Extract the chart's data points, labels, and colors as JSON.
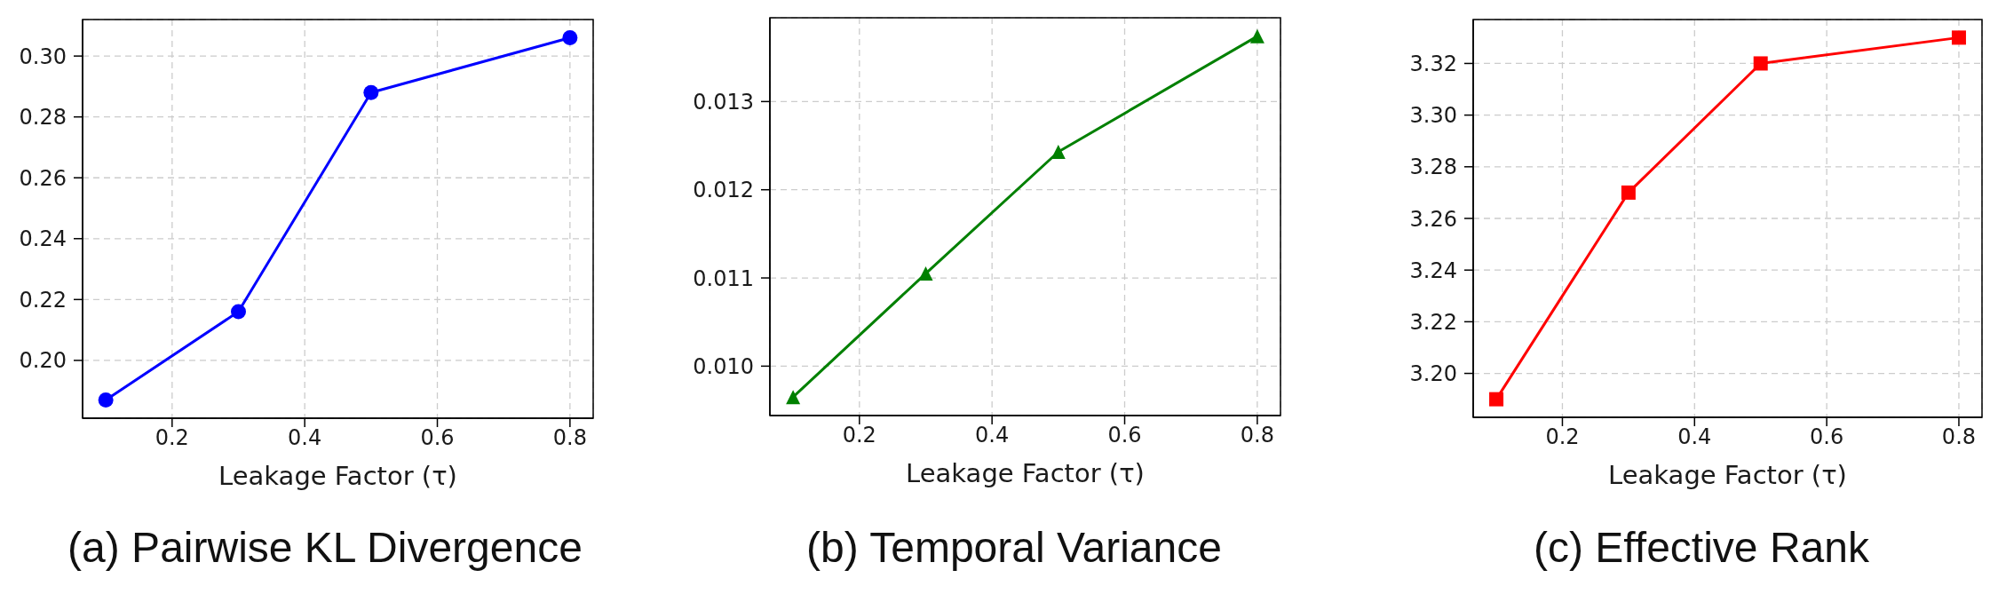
{
  "chart_data": [
    {
      "type": "line",
      "title": "(a) Pairwise KL Divergence",
      "xlabel": "Leakage Factor (τ)",
      "x": [
        0.1,
        0.3,
        0.5,
        0.8
      ],
      "series": [
        {
          "color": "#0000ff",
          "values": [
            0.187,
            0.216,
            0.288,
            0.306
          ]
        }
      ],
      "marker": "circle",
      "grid": true,
      "xlim": [
        0.065,
        0.835
      ],
      "xticks": [
        0.2,
        0.4,
        0.6,
        0.8
      ],
      "ylim": [
        0.181,
        0.312
      ],
      "yticks": [
        {
          "value": 0.2,
          "label": "0.20"
        },
        0.22,
        0.24,
        0.26,
        0.28,
        {
          "value": 0.3,
          "label": "0.30"
        }
      ]
    },
    {
      "type": "line",
      "title": "(b) Temporal Variance",
      "xlabel": "Leakage Factor (τ)",
      "x": [
        0.1,
        0.3,
        0.5,
        0.8
      ],
      "series": [
        {
          "color": "#008000",
          "values": [
            0.00965,
            0.01105,
            0.01243,
            0.01374
          ]
        }
      ],
      "marker": "triangle",
      "grid": true,
      "xlim": [
        0.065,
        0.835
      ],
      "xticks": [
        0.2,
        0.4,
        0.6,
        0.8
      ],
      "ylim": [
        0.00944,
        0.01395
      ],
      "yticks": [
        {
          "value": 0.01,
          "label": "0.010"
        },
        0.011,
        0.012,
        0.013
      ]
    },
    {
      "type": "line",
      "title": "(c) Effective Rank",
      "xlabel": "Leakage Factor (τ)",
      "x": [
        0.1,
        0.3,
        0.5,
        0.8
      ],
      "series": [
        {
          "color": "#ff0000",
          "values": [
            3.19,
            3.27,
            3.32,
            3.33
          ]
        }
      ],
      "marker": "square",
      "grid": true,
      "xlim": [
        0.065,
        0.835
      ],
      "xticks": [
        0.2,
        0.4,
        0.6,
        0.8
      ],
      "ylim": [
        3.183,
        3.337
      ],
      "yticks": [
        {
          "value": 3.2,
          "label": "3.20"
        },
        3.22,
        3.24,
        3.26,
        3.28,
        {
          "value": 3.3,
          "label": "3.30"
        },
        3.32
      ]
    }
  ]
}
